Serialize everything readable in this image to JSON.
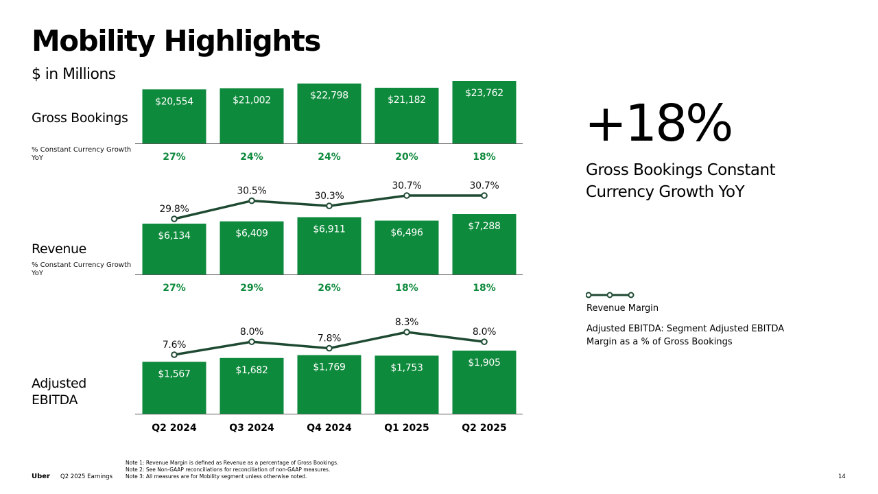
{
  "title": "Mobility Highlights",
  "subtitle": "$ in Millions",
  "rows": {
    "gross_bookings": {
      "label": "Gross Bookings",
      "sublabel": "% Constant Currency Growth YoY"
    },
    "revenue": {
      "label": "Revenue",
      "sublabel": "% Constant Currency Growth YoY"
    },
    "adjusted_ebitda": {
      "label": "Adjusted EBITDA"
    }
  },
  "highlight": {
    "value": "+18%",
    "caption": "Gross Bookings Constant Currency Growth YoY"
  },
  "legend": {
    "line_label": "Revenue Margin",
    "ebitda_note": "Adjusted EBITDA: Segment Adjusted EBITDA Margin as a % of Gross Bookings"
  },
  "footer": {
    "logo": "Uber",
    "event": "Q2 2025 Earnings",
    "notes": [
      "Note 1: Revenue Margin is defined as Revenue as a percentage of Gross Bookings.",
      "Note 2: See Non-GAAP reconciliations for reconciliation of non-GAAP measures.",
      "Note 3: All measures are for Mobility segment unless otherwise noted."
    ],
    "page": "14"
  },
  "colors": {
    "bar": "#0e8a3c",
    "growth_text": "#0e8a3c",
    "line": "#1e4a32",
    "axis": "#555555"
  },
  "chart_data": [
    {
      "type": "bar",
      "name": "Gross Bookings",
      "categories": [
        "Q2 2024",
        "Q3 2024",
        "Q4 2024",
        "Q1 2025",
        "Q2 2025"
      ],
      "values": [
        20554,
        21002,
        22798,
        21182,
        23762
      ],
      "value_labels": [
        "$20,554",
        "$21,002",
        "$22,798",
        "$21,182",
        "$23,762"
      ],
      "growth_labels": [
        "27%",
        "24%",
        "24%",
        "20%",
        "18%"
      ]
    },
    {
      "type": "bar",
      "name": "Revenue",
      "categories": [
        "Q2 2024",
        "Q3 2024",
        "Q4 2024",
        "Q1 2025",
        "Q2 2025"
      ],
      "values": [
        6134,
        6409,
        6911,
        6496,
        7288
      ],
      "value_labels": [
        "$6,134",
        "$6,409",
        "$6,911",
        "$6,496",
        "$7,288"
      ],
      "growth_labels": [
        "27%",
        "29%",
        "26%",
        "18%",
        "18%"
      ],
      "line_series": {
        "values": [
          29.8,
          30.5,
          30.3,
          30.7,
          30.7
        ],
        "labels": [
          "29.8%",
          "30.5%",
          "30.3%",
          "30.7%",
          "30.7%"
        ]
      }
    },
    {
      "type": "bar",
      "name": "Adjusted EBITDA",
      "categories": [
        "Q2 2024",
        "Q3 2024",
        "Q4 2024",
        "Q1 2025",
        "Q2 2025"
      ],
      "values": [
        1567,
        1682,
        1769,
        1753,
        1905
      ],
      "value_labels": [
        "$1,567",
        "$1,682",
        "$1,769",
        "$1,753",
        "$1,905"
      ],
      "line_series": {
        "values": [
          7.6,
          8.0,
          7.8,
          8.3,
          8.0
        ],
        "labels": [
          "7.6%",
          "8.0%",
          "7.8%",
          "8.3%",
          "8.0%"
        ]
      }
    }
  ]
}
